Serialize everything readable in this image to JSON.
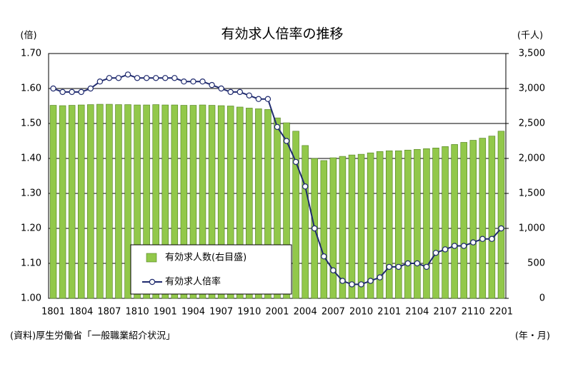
{
  "chart_data": {
    "type": "bar",
    "title": "有効求人倍率の推移",
    "y_unit": "(倍)",
    "y2_unit": "(千人)",
    "x_unit": "(年・月)",
    "source": "(資料)厚生労働省「一般職業紹介状況」",
    "categories": [
      "1801",
      null,
      null,
      "1804",
      null,
      null,
      "1807",
      null,
      null,
      "1810",
      null,
      null,
      "1901",
      null,
      null,
      "1904",
      null,
      null,
      "1907",
      null,
      null,
      "1910",
      null,
      null,
      "2001",
      null,
      null,
      "2004",
      null,
      null,
      "2007",
      null,
      null,
      "2010",
      null,
      null,
      "2101",
      null,
      null,
      "2104",
      null,
      null,
      "2107",
      null,
      null,
      "2110",
      null,
      null,
      "2201"
    ],
    "series": [
      {
        "name": "有効求人数(右目盛)",
        "type": "bar",
        "axis": "y2",
        "color": "#92c84a",
        "values": [
          2760,
          2755,
          2760,
          2765,
          2770,
          2775,
          2775,
          2770,
          2770,
          2765,
          2765,
          2770,
          2765,
          2765,
          2760,
          2760,
          2765,
          2760,
          2755,
          2750,
          2735,
          2720,
          2710,
          2700,
          2580,
          2510,
          2390,
          2185,
          2000,
          1970,
          2010,
          2030,
          2050,
          2060,
          2080,
          2100,
          2110,
          2110,
          2120,
          2130,
          2140,
          2150,
          2170,
          2200,
          2230,
          2260,
          2290,
          2320,
          2390
        ]
      },
      {
        "name": "有効求人倍率",
        "type": "line",
        "axis": "y",
        "color": "#1f2a6e",
        "values": [
          1.6,
          1.59,
          1.59,
          1.59,
          1.6,
          1.62,
          1.63,
          1.63,
          1.64,
          1.63,
          1.63,
          1.63,
          1.63,
          1.63,
          1.62,
          1.62,
          1.62,
          1.61,
          1.6,
          1.59,
          1.59,
          1.58,
          1.57,
          1.57,
          1.49,
          1.45,
          1.39,
          1.32,
          1.2,
          1.12,
          1.08,
          1.05,
          1.04,
          1.04,
          1.05,
          1.06,
          1.09,
          1.09,
          1.1,
          1.1,
          1.09,
          1.13,
          1.14,
          1.15,
          1.15,
          1.16,
          1.17,
          1.17,
          1.2
        ]
      }
    ],
    "ylim": [
      1.0,
      1.7
    ],
    "yticks": [
      {
        "value": 1.0,
        "label": "1.00"
      },
      {
        "value": 1.1,
        "label": "1.10"
      },
      {
        "value": 1.2,
        "label": "1.20"
      },
      {
        "value": 1.3,
        "label": "1.30"
      },
      {
        "value": 1.4,
        "label": "1.40"
      },
      {
        "value": 1.5,
        "label": "1.50"
      },
      {
        "value": 1.6,
        "label": "1.60"
      },
      {
        "value": 1.7,
        "label": "1.70"
      }
    ],
    "y2lim": [
      0,
      3500
    ],
    "y2ticks": [
      0,
      500,
      {
        "value": 1000,
        "label": "1,000"
      },
      {
        "value": 1500,
        "label": "1,500"
      },
      {
        "value": 2000,
        "label": "2,000"
      },
      {
        "value": 2500,
        "label": "2,500"
      },
      {
        "value": 3000,
        "label": "3,000"
      },
      {
        "value": 3500,
        "label": "3,500"
      }
    ],
    "grid": true,
    "legend": "bottom-left"
  }
}
